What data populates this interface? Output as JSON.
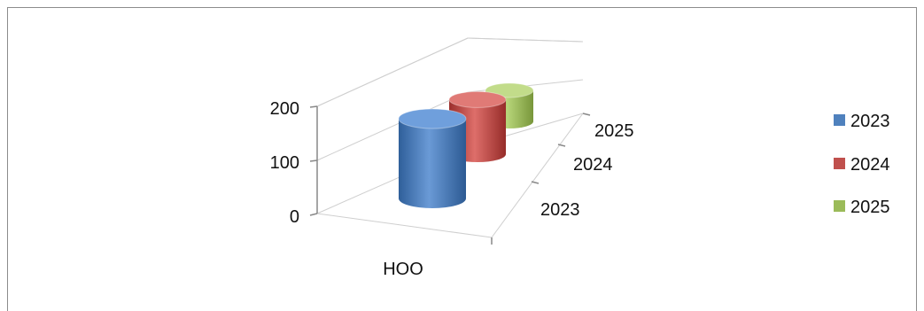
{
  "chart_data": {
    "type": "bar",
    "subtype": "3d-cylinder",
    "title": "",
    "categories": [
      "HOO"
    ],
    "depth_labels": [
      "2023",
      "2024",
      "2025"
    ],
    "series": [
      {
        "name": "2023",
        "values": [
          150
        ],
        "color": "#4f81bd"
      },
      {
        "name": "2024",
        "values": [
          110
        ],
        "color": "#c0504d"
      },
      {
        "name": "2025",
        "values": [
          70
        ],
        "color": "#9bbb59"
      }
    ],
    "y_ticks": [
      "0",
      "100",
      "200"
    ],
    "ylim": [
      0,
      200
    ],
    "grid": true,
    "legend_position": "right"
  }
}
